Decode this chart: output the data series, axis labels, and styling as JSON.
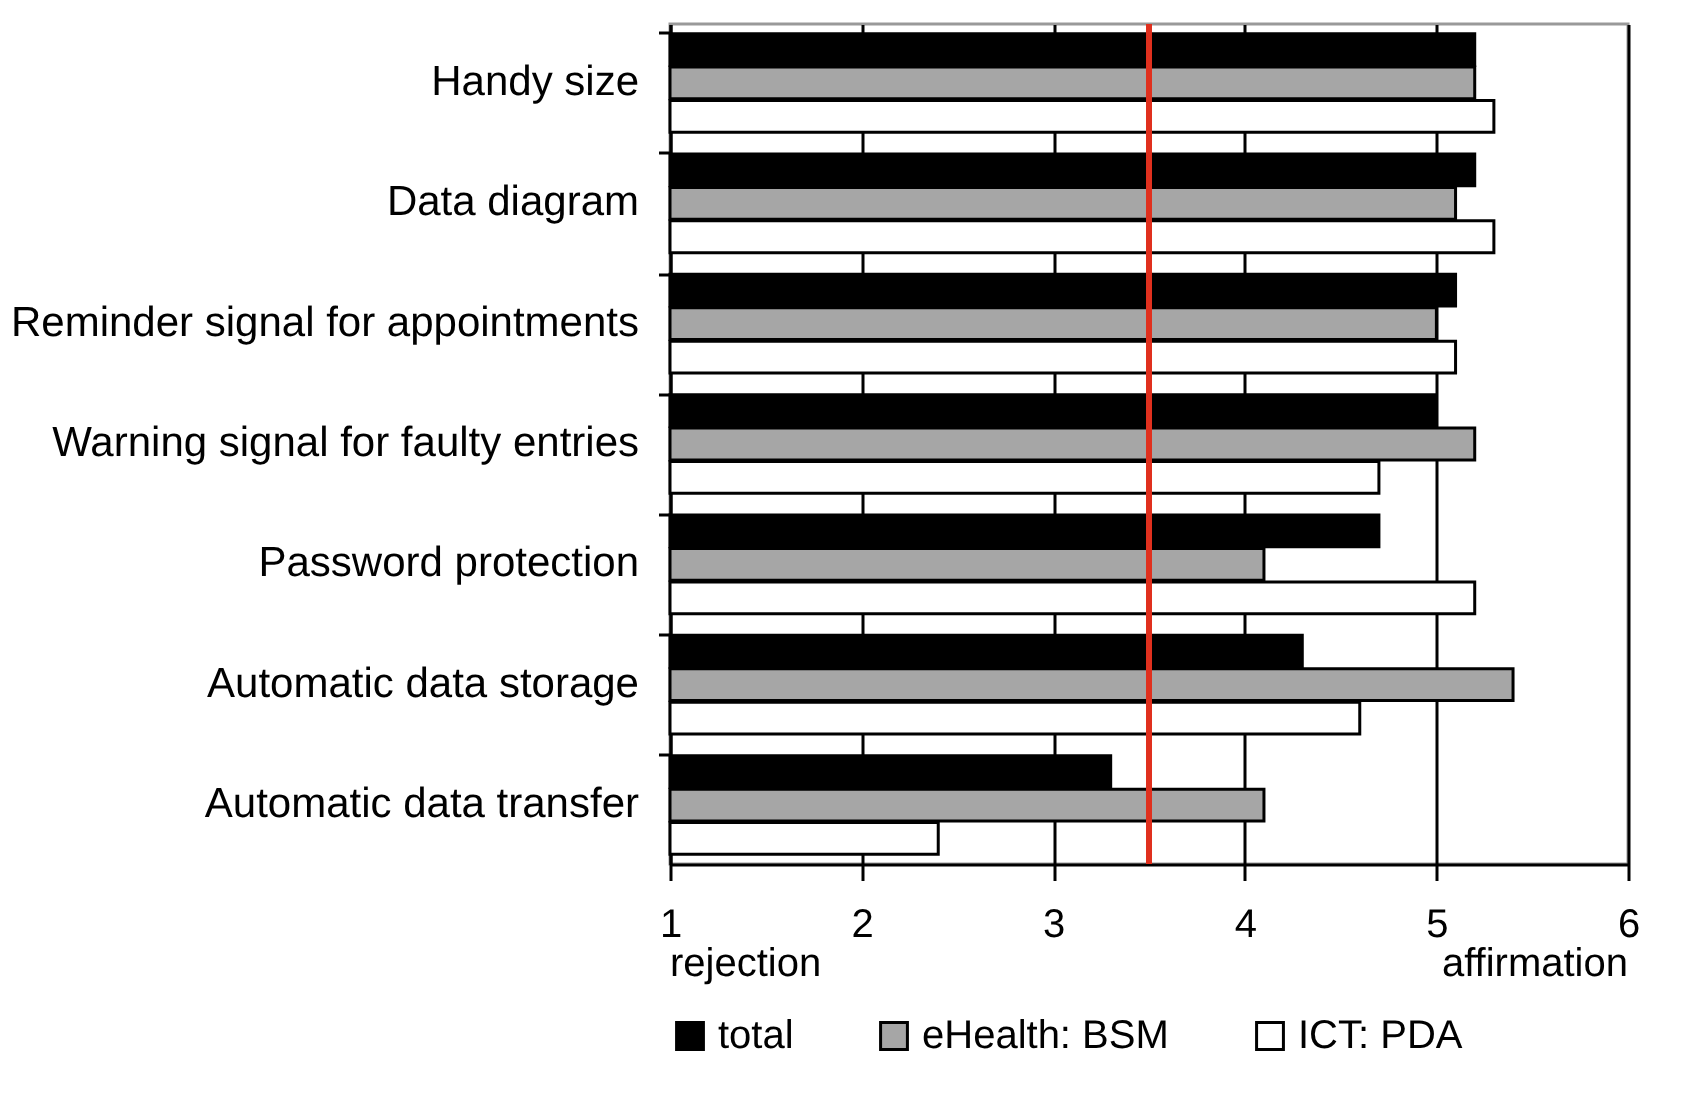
{
  "chart_data": {
    "type": "bar",
    "orientation": "horizontal",
    "categories": [
      "Handy size",
      "Data diagram",
      "Reminder signal for appointments",
      "Warning signal for faulty entries",
      "Password protection",
      "Automatic data storage",
      "Automatic data transfer"
    ],
    "series": [
      {
        "name": "total",
        "color": "#000000",
        "values": [
          5.2,
          5.2,
          5.1,
          5.0,
          4.7,
          4.3,
          3.3
        ]
      },
      {
        "name": "eHealth: BSM",
        "color": "#a6a6a6",
        "values": [
          5.2,
          5.1,
          5.0,
          5.2,
          4.1,
          5.4,
          4.1
        ]
      },
      {
        "name": "ICT: PDA",
        "color": "#ffffff",
        "values": [
          5.3,
          5.3,
          5.1,
          4.7,
          5.2,
          4.6,
          2.4
        ]
      }
    ],
    "xlim": [
      1,
      6
    ],
    "xticks": [
      1,
      2,
      3,
      4,
      5,
      6
    ],
    "grid": "x",
    "legend": "bottom",
    "ref_lines": [
      {
        "axis": "x",
        "value": 3.5,
        "color": "#e0301e"
      }
    ],
    "annotations": [
      "rejection",
      "affirmation"
    ]
  }
}
